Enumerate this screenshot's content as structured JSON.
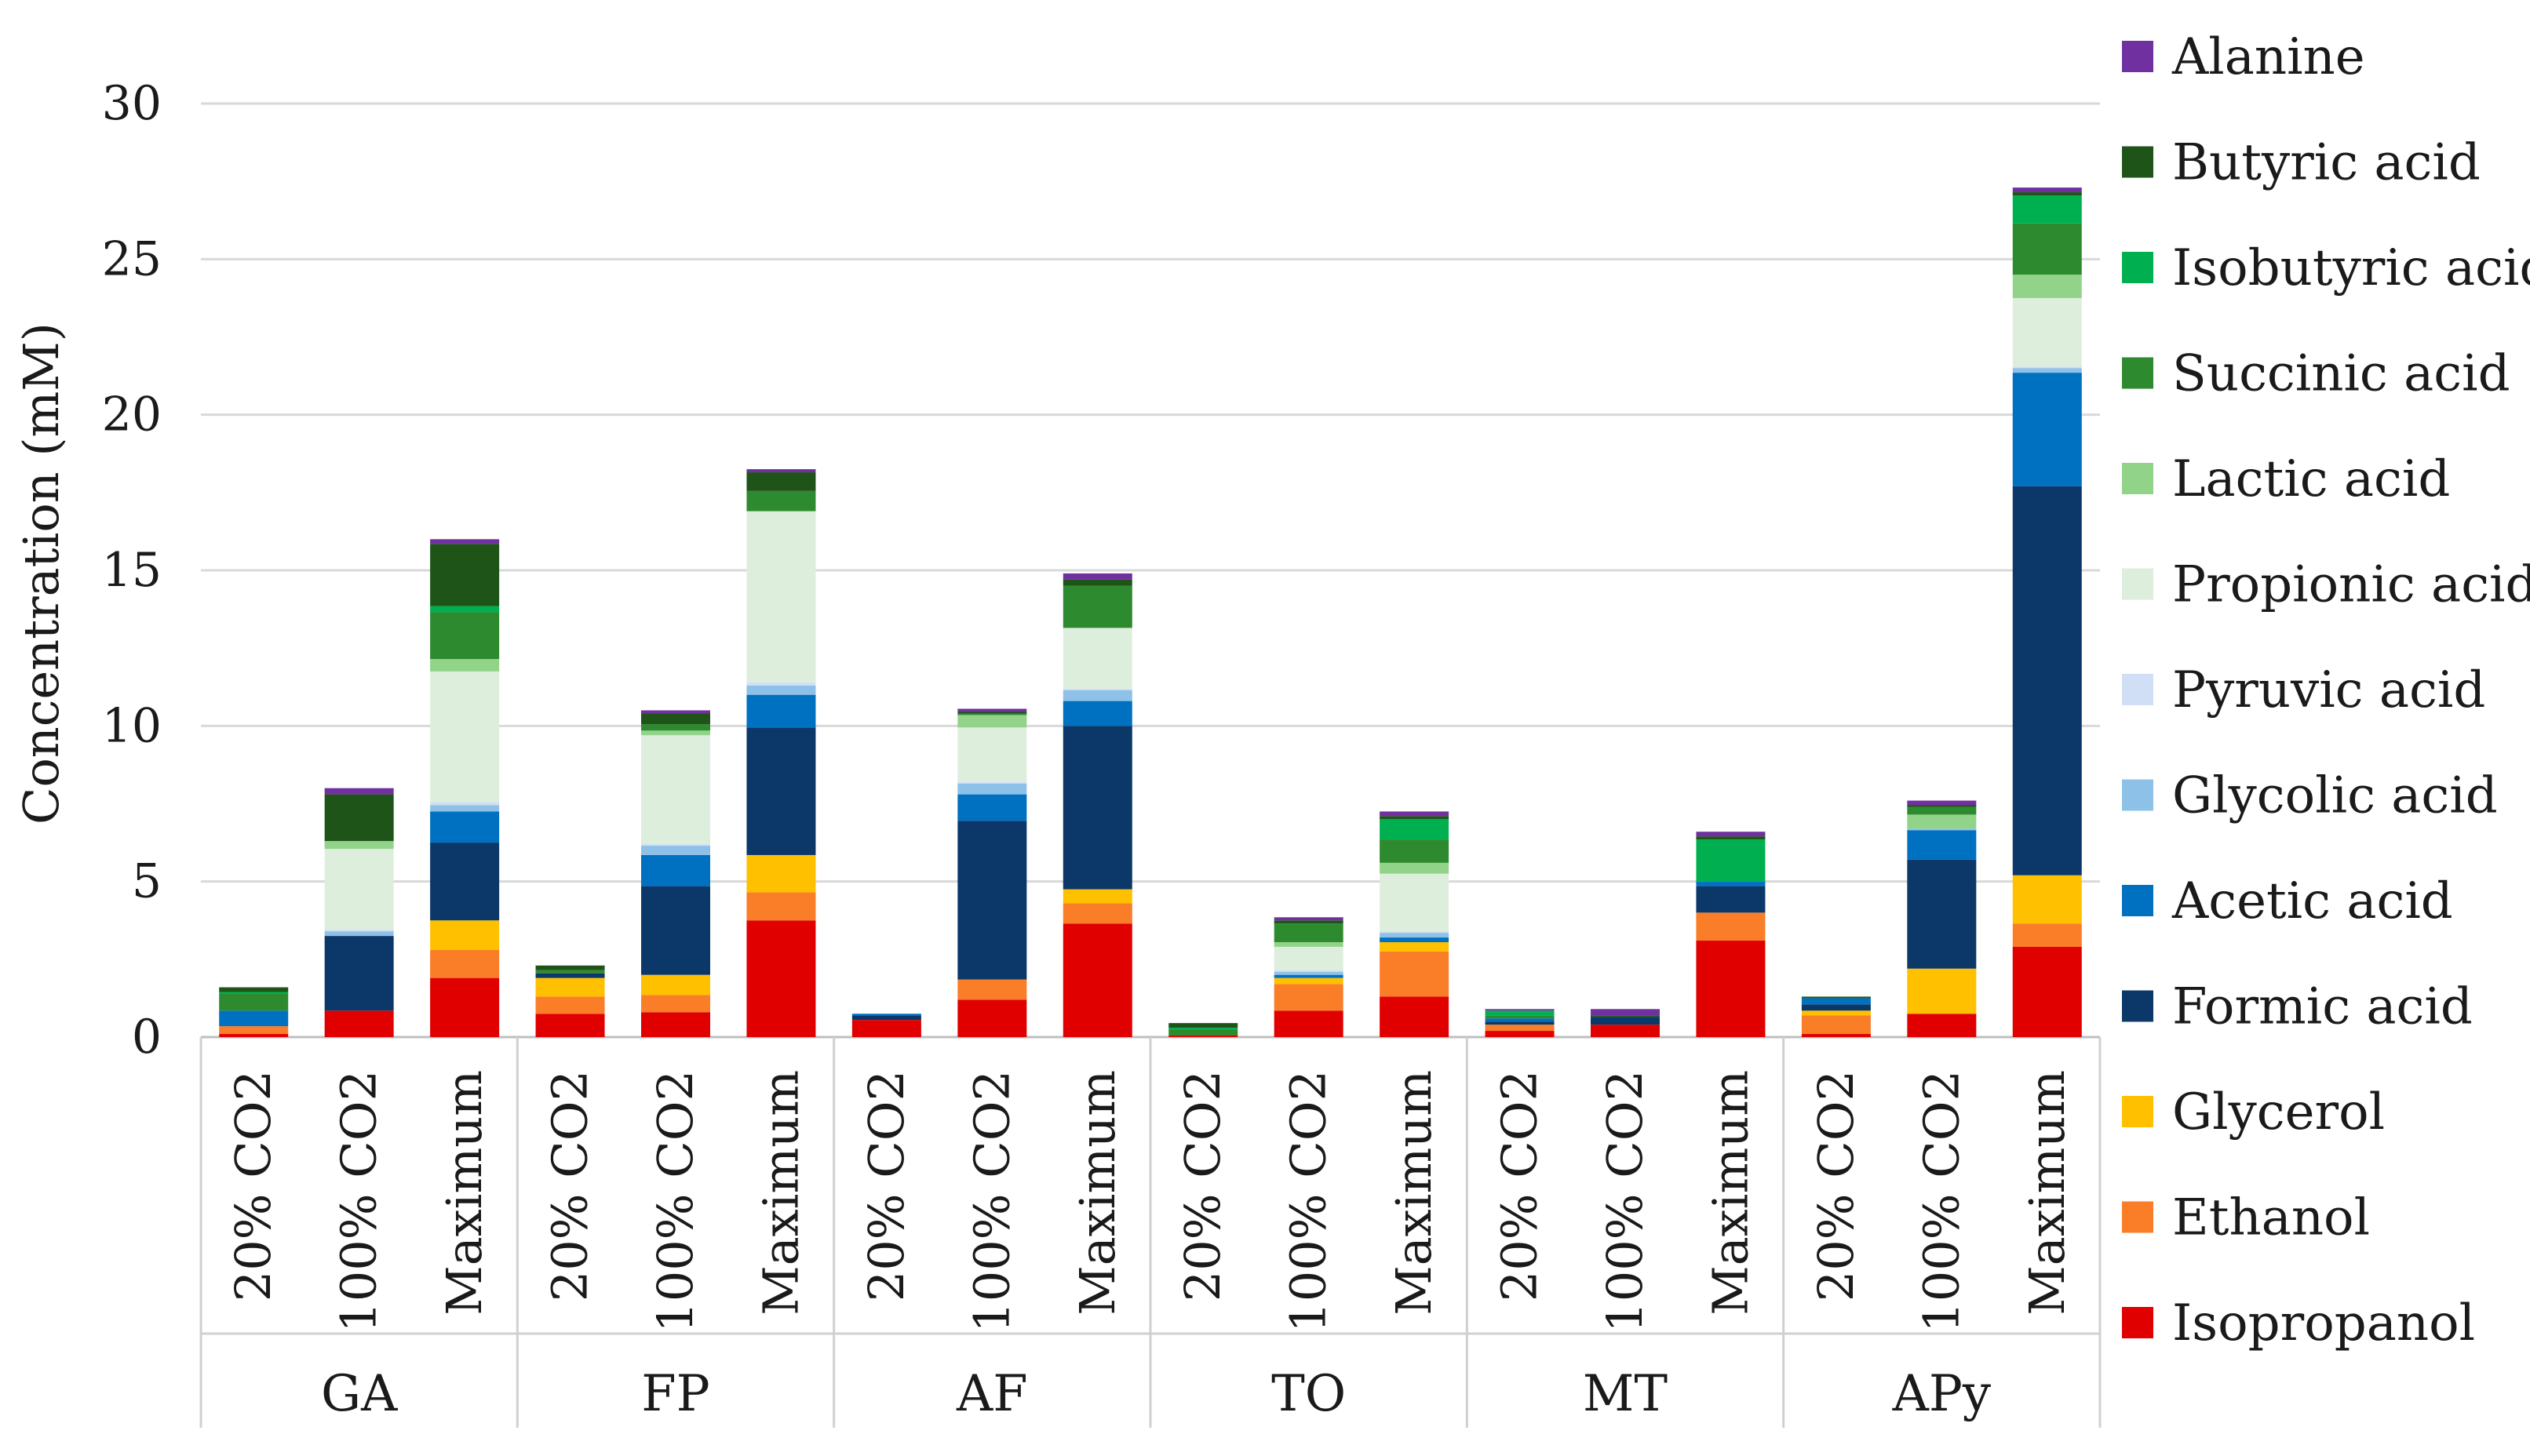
{
  "chart_data": {
    "type": "bar",
    "stacked": true,
    "title": "",
    "xlabel": "",
    "ylabel": "Concentration (mM)",
    "ylim": [
      0,
      30
    ],
    "yticks": [
      0,
      5,
      10,
      15,
      20,
      25,
      30
    ],
    "grid": true,
    "legend_position": "right",
    "groups": [
      {
        "name": "GA",
        "categories": [
          "20% CO2",
          "100% CO2",
          "Maximum"
        ]
      },
      {
        "name": "FP",
        "categories": [
          "20% CO2",
          "100% CO2",
          "Maximum"
        ]
      },
      {
        "name": "AF",
        "categories": [
          "20% CO2",
          "100% CO2",
          "Maximum"
        ]
      },
      {
        "name": "TO",
        "categories": [
          "20% CO2",
          "100% CO2",
          "Maximum"
        ]
      },
      {
        "name": "MT",
        "categories": [
          "20% CO2",
          "100% CO2",
          "Maximum"
        ]
      },
      {
        "name": "APy",
        "categories": [
          "20% CO2",
          "100% CO2",
          "Maximum"
        ]
      }
    ],
    "series": [
      {
        "name": "Isopropanol",
        "color": "#e00000",
        "values": [
          0.1,
          0.85,
          1.9,
          0.75,
          0.8,
          3.75,
          0.55,
          1.2,
          3.65,
          0.05,
          0.85,
          1.3,
          0.2,
          0.4,
          3.1,
          0.1,
          0.75,
          2.9
        ]
      },
      {
        "name": "Ethanol",
        "color": "#fa7d28",
        "values": [
          0.25,
          0.0,
          0.9,
          0.55,
          0.55,
          0.9,
          0.0,
          0.65,
          0.65,
          0.0,
          0.85,
          1.45,
          0.2,
          0.0,
          0.9,
          0.6,
          0.0,
          0.75
        ]
      },
      {
        "name": "Glycerol",
        "color": "#ffc000",
        "values": [
          0.0,
          0.0,
          0.95,
          0.6,
          0.65,
          1.2,
          0.0,
          0.0,
          0.45,
          0.0,
          0.2,
          0.3,
          0.0,
          0.0,
          0.0,
          0.15,
          1.45,
          1.55
        ]
      },
      {
        "name": "Formic acid",
        "color": "#0b3868",
        "values": [
          0.0,
          2.4,
          2.5,
          0.15,
          2.85,
          4.1,
          0.15,
          5.1,
          5.25,
          0.0,
          0.0,
          0.0,
          0.1,
          0.25,
          0.85,
          0.2,
          3.5,
          12.5
        ]
      },
      {
        "name": "Acetic acid",
        "color": "#0070c0",
        "values": [
          0.5,
          0.0,
          1.0,
          0.0,
          1.0,
          1.05,
          0.05,
          0.85,
          0.8,
          0.0,
          0.1,
          0.15,
          0.1,
          0.0,
          0.15,
          0.2,
          0.95,
          3.65
        ]
      },
      {
        "name": "Glycolic acid",
        "color": "#8ec1e8",
        "values": [
          0.0,
          0.15,
          0.2,
          0.0,
          0.3,
          0.3,
          0.0,
          0.35,
          0.35,
          0.0,
          0.1,
          0.15,
          0.0,
          0.0,
          0.0,
          0.0,
          0.05,
          0.15
        ]
      },
      {
        "name": "Pyruvic acid",
        "color": "#d0dff5",
        "values": [
          0.0,
          0.05,
          0.1,
          0.0,
          0.05,
          0.1,
          0.0,
          0.05,
          0.05,
          0.0,
          0.05,
          0.05,
          0.0,
          0.0,
          0.0,
          0.0,
          0.0,
          0.05
        ]
      },
      {
        "name": "Propionic acid",
        "color": "#deeedd",
        "values": [
          0.0,
          2.6,
          4.2,
          0.0,
          3.5,
          5.5,
          0.0,
          1.75,
          1.95,
          0.0,
          0.75,
          1.85,
          0.0,
          0.0,
          0.0,
          0.0,
          0.0,
          2.2
        ]
      },
      {
        "name": "Lactic acid",
        "color": "#92d38a",
        "values": [
          0.0,
          0.25,
          0.4,
          0.0,
          0.15,
          0.0,
          0.0,
          0.4,
          0.0,
          0.0,
          0.15,
          0.35,
          0.0,
          0.0,
          0.0,
          0.0,
          0.45,
          0.75
        ]
      },
      {
        "name": "Succinic acid",
        "color": "#2e8a2e",
        "values": [
          0.55,
          0.0,
          1.5,
          0.1,
          0.2,
          0.65,
          0.0,
          0.05,
          1.35,
          0.2,
          0.6,
          0.75,
          0.1,
          0.0,
          0.0,
          0.0,
          0.25,
          1.65
        ]
      },
      {
        "name": "Isobutyric acid",
        "color": "#00b050",
        "values": [
          0.05,
          0.0,
          0.2,
          0.0,
          0.0,
          0.0,
          0.0,
          0.0,
          0.0,
          0.05,
          0.0,
          0.65,
          0.15,
          0.0,
          1.35,
          0.0,
          0.0,
          0.9
        ]
      },
      {
        "name": "Butyric acid",
        "color": "#1e5418",
        "values": [
          0.15,
          1.5,
          2.0,
          0.15,
          0.35,
          0.6,
          0.0,
          0.05,
          0.2,
          0.15,
          0.1,
          0.1,
          0.0,
          0.05,
          0.1,
          0.05,
          0.05,
          0.1
        ]
      },
      {
        "name": "Alanine",
        "color": "#7030a0",
        "values": [
          0.0,
          0.2,
          0.15,
          0.0,
          0.1,
          0.1,
          0.0,
          0.1,
          0.2,
          0.0,
          0.1,
          0.15,
          0.05,
          0.2,
          0.15,
          0.0,
          0.15,
          0.15
        ]
      }
    ]
  }
}
